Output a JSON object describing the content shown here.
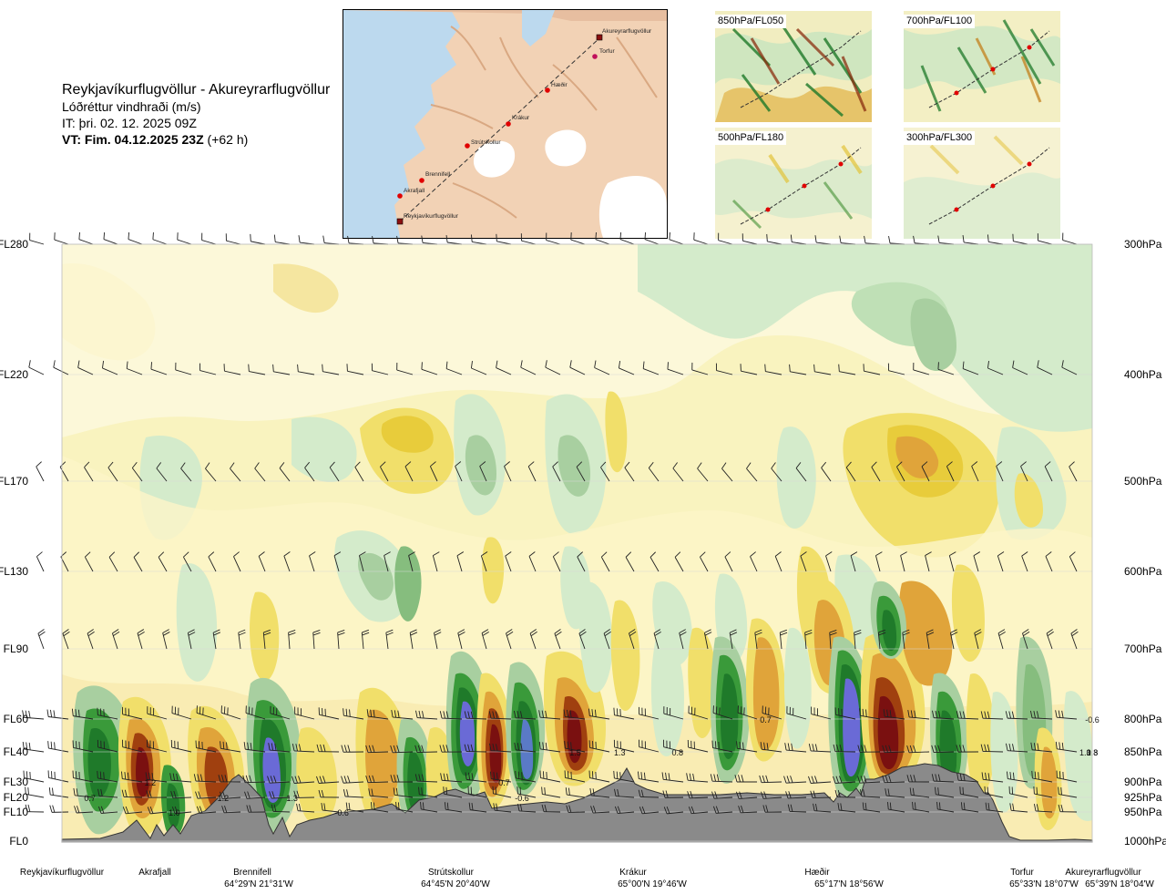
{
  "header": {
    "title": "Reykjavíkurflugvöllur - Akureyrarflugvöllur",
    "subtitle": "Lóðréttur vindhraði (m/s)",
    "issue_time": "IT: þri. 02. 12. 2025 09Z",
    "valid_time_bold": "VT: Fim. 04.12.2025 23Z",
    "valid_time_offset": "(+62 h)"
  },
  "route_map": {
    "places": [
      {
        "name": "Akureyrarflugvöllur"
      },
      {
        "name": "Torfur"
      },
      {
        "name": "Hæðir"
      },
      {
        "name": "Krákur"
      },
      {
        "name": "Strútskollur"
      },
      {
        "name": "Brennifell"
      },
      {
        "name": "Akrafjall"
      },
      {
        "name": "Reykjavíkurflugvöllur"
      }
    ]
  },
  "mini_maps": [
    {
      "label": "850hPa/FL050"
    },
    {
      "label": "700hPa/FL100"
    },
    {
      "label": "500hPa/FL180"
    },
    {
      "label": "300hPa/FL300"
    }
  ],
  "chart_data": {
    "type": "heatmap",
    "title": "Lóðréttur vindhraði (m/s)",
    "y_left_labels": [
      "FL280",
      "FL220",
      "FL170",
      "FL130",
      "FL90",
      "FL60",
      "FL40",
      "FL30",
      "FL20",
      "FL10",
      "FL0"
    ],
    "y_right_labels": [
      "300hPa",
      "400hPa",
      "500hPa",
      "600hPa",
      "700hPa",
      "800hPa",
      "850hPa",
      "900hPa",
      "925hPa",
      "950hPa",
      "1000hPa"
    ],
    "x_waypoints": [
      {
        "name": "Reykjavíkurflugvöllur",
        "coord": ""
      },
      {
        "name": "Akrafjall",
        "coord": ""
      },
      {
        "name": "Brennifell",
        "coord": "64°29'N 21°31'W"
      },
      {
        "name": "Strútskollur",
        "coord": "64°45'N 20°40'W"
      },
      {
        "name": "Krákur",
        "coord": "65°00'N 19°46'W"
      },
      {
        "name": "Hæðir",
        "coord": "65°17'N 18°56'W"
      },
      {
        "name": "Torfur",
        "coord": "65°33'N 18°07'W"
      },
      {
        "name": "Akureyrarflugvöllur",
        "coord": "65°39'N 18°04'W"
      }
    ],
    "value_labels": [
      {
        "x_index": 0.3,
        "level": "FL20",
        "text": "0.7"
      },
      {
        "x_index": 0.95,
        "level": "FL30",
        "text": "1.2"
      },
      {
        "x_index": 1.2,
        "level": "FL10",
        "text": "1.0"
      },
      {
        "x_index": 1.7,
        "level": "FL20",
        "text": "1.2"
      },
      {
        "x_index": 2.2,
        "level": "FL20",
        "text": "1.3"
      },
      {
        "x_index": 2.45,
        "level": "FL10",
        "text": "-0.6"
      },
      {
        "x_index": 3.3,
        "level": "FL30",
        "text": "0.7"
      },
      {
        "x_index": 3.4,
        "level": "FL20",
        "text": "-0.6"
      },
      {
        "x_index": 3.7,
        "level": "FL40",
        "text": "1.5"
      },
      {
        "x_index": 3.95,
        "level": "FL40",
        "text": "1.3"
      },
      {
        "x_index": 4.25,
        "level": "FL40",
        "text": "0.8"
      },
      {
        "x_index": 4.7,
        "level": "FL60",
        "text": "0.7"
      },
      {
        "x_index": 6.9,
        "level": "FL40",
        "text": "1.3"
      },
      {
        "x_index": 7.15,
        "level": "FL40",
        "text": "1.3"
      },
      {
        "x_index": 7.35,
        "level": "FL60",
        "text": "-0.6"
      },
      {
        "x_index": 7.75,
        "level": "FL40",
        "text": "0.8"
      }
    ],
    "legend": "none",
    "grid": true
  }
}
